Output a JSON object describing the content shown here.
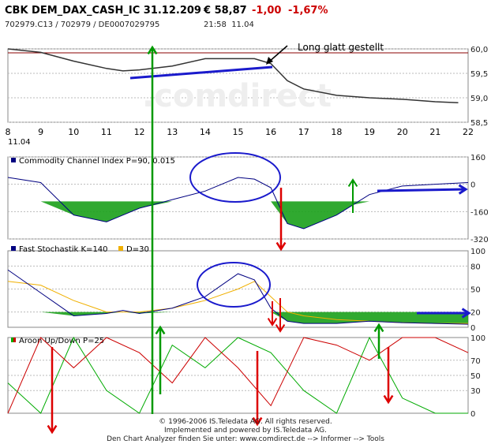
{
  "header": {
    "title": "CBK DEM_DAX_CASH_IC 31.12.209",
    "price": "€ 58,87",
    "change": "-1,00",
    "change_pct": "-1,67%",
    "ids": "702979.C13 / 702979 / DE0007029795",
    "time": "21:58",
    "date": "11.04"
  },
  "annotation": {
    "text": "Long glatt gestellt"
  },
  "colors": {
    "price_line": "#333333",
    "annot_blue": "#1a1acc",
    "up_green": "#009900",
    "down_red": "#dd0000",
    "fill_green": "#1aa01a",
    "cci_line": "#000080",
    "stoch_k": "#000080",
    "stoch_d": "#f0b000",
    "aroon_up": "#00aa00",
    "aroon_down": "#cc0000"
  },
  "chart_data": [
    {
      "type": "line",
      "name": "price",
      "x_ticks": [
        "8",
        "9",
        "10",
        "11",
        "12",
        "13",
        "14",
        "15",
        "16",
        "17",
        "18",
        "19",
        "20",
        "21",
        "22"
      ],
      "x_sub_label": "11.04",
      "y_ticks": [
        "60,0",
        "59,5",
        "59,0",
        "58,5"
      ],
      "ylim": [
        58.5,
        60.0
      ],
      "reference_level": 59.92,
      "x": [
        8,
        9,
        10,
        11,
        11.5,
        12,
        13,
        14,
        15,
        15.5,
        16,
        16.5,
        17,
        18,
        19,
        20,
        21,
        21.7
      ],
      "values": [
        60.0,
        59.93,
        59.75,
        59.6,
        59.55,
        59.57,
        59.65,
        59.8,
        59.8,
        59.8,
        59.7,
        59.35,
        59.18,
        59.05,
        59.0,
        58.97,
        58.92,
        58.9
      ]
    },
    {
      "type": "area",
      "name": "cci",
      "legend": "Commodity Channel Index P=90, 0.015",
      "y_ticks": [
        "160",
        "0",
        "-160",
        "-320"
      ],
      "ylim": [
        -320,
        160
      ],
      "x": [
        8,
        9,
        10,
        11,
        11.5,
        12,
        13,
        14,
        15,
        15.5,
        16,
        16.5,
        17,
        18,
        18.5,
        19,
        20,
        21,
        22
      ],
      "values": [
        40,
        10,
        -180,
        -220,
        -180,
        -140,
        -90,
        -40,
        40,
        30,
        -20,
        -230,
        -260,
        -180,
        -120,
        -60,
        -10,
        0,
        10
      ]
    },
    {
      "type": "area",
      "name": "stochastic",
      "legend": [
        "Fast Stochastik K=140",
        "D=30"
      ],
      "y_ticks": [
        "100",
        "80",
        "50",
        "20",
        "0"
      ],
      "ylim": [
        0,
        100
      ],
      "x": [
        8,
        9,
        10,
        11,
        11.5,
        12,
        13,
        14,
        15,
        15.5,
        16,
        16.5,
        17,
        18,
        19,
        20,
        21,
        22
      ],
      "k": [
        75,
        45,
        15,
        18,
        22,
        18,
        25,
        40,
        70,
        62,
        25,
        8,
        5,
        5,
        8,
        6,
        5,
        4
      ],
      "d": [
        60,
        55,
        35,
        20,
        20,
        20,
        25,
        35,
        50,
        60,
        40,
        20,
        15,
        10,
        8,
        6,
        5,
        5
      ]
    },
    {
      "type": "line",
      "name": "aroon",
      "legend": "Aroon Up/Down P=25",
      "y_ticks": [
        "100",
        "70",
        "50",
        "30",
        "0"
      ],
      "ylim": [
        0,
        100
      ],
      "x": [
        8,
        9,
        10,
        11,
        12,
        13,
        14,
        15,
        16,
        17,
        18,
        19,
        20,
        21,
        22
      ],
      "up": [
        40,
        0,
        100,
        30,
        0,
        90,
        60,
        100,
        80,
        30,
        0,
        100,
        20,
        0,
        0
      ],
      "down": [
        0,
        100,
        60,
        100,
        80,
        40,
        100,
        60,
        10,
        100,
        90,
        70,
        100,
        100,
        80
      ]
    }
  ],
  "footer": {
    "line1": "© 1996-2006 IS.Teledata AG. All rights reserved.",
    "line2": "Implemented and powered by IS.Teledata AG.",
    "line3": "Den Chart Analyzer finden Sie unter: www.comdirect.de --> Informer --> Tools"
  }
}
